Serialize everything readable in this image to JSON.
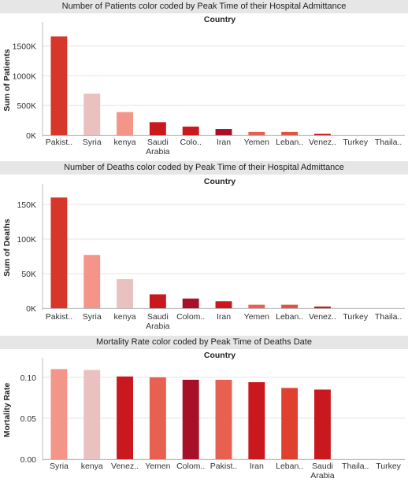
{
  "charts": [
    {
      "title": "Number of Patients color coded by Peak Time of their Hospital Admittance",
      "header": "Country",
      "chart_data": {
        "type": "bar",
        "title": "Number of Patients color coded by Peak Time of their Hospital Admittance",
        "xlabel": "Country",
        "ylabel": "Sum of Patients",
        "categories": [
          "Pakist..",
          "Syria",
          "kenya",
          "Saudi Arabia",
          "Colo..",
          "Iran",
          "Yemen",
          "Leban..",
          "Venez..",
          "Turkey",
          "Thaila.."
        ],
        "values": [
          1660000,
          700000,
          390000,
          220000,
          145000,
          105000,
          55000,
          55000,
          25000,
          0,
          0
        ],
        "colors": [
          "#d7372b",
          "#e9c2c0",
          "#f4958a",
          "#c9191e",
          "#c9191e",
          "#a8102a",
          "#e8604f",
          "#e25442",
          "#c9191e",
          "#c9191e",
          "#c9191e"
        ],
        "ylim": [
          0,
          1850000
        ],
        "yticks": [
          0,
          500000,
          1000000,
          1500000
        ],
        "ytick_labels": [
          "0K",
          "500K",
          "1000K",
          "1500K"
        ]
      }
    },
    {
      "title": "Number of Deaths color coded by Peak Time of their Hospital Admittance",
      "header": "Country",
      "chart_data": {
        "type": "bar",
        "title": "Number of Deaths color coded by Peak Time of their Hospital Admittance",
        "xlabel": "Country",
        "ylabel": "Sum of Deaths",
        "categories": [
          "Pakist..",
          "Syria",
          "kenya",
          "Saudi Arabia",
          "Colom..",
          "Iran",
          "Yemen",
          "Leban..",
          "Venez..",
          "Turkey",
          "Thaila.."
        ],
        "values": [
          160000,
          77000,
          42000,
          20000,
          14000,
          10000,
          5000,
          5000,
          2500,
          0,
          0
        ],
        "colors": [
          "#d7372b",
          "#f4958a",
          "#e9c2c0",
          "#c9191e",
          "#a8102a",
          "#c9191e",
          "#e8604f",
          "#e25442",
          "#c9191e",
          "#c9191e",
          "#c9191e"
        ],
        "ylim": [
          0,
          175000
        ],
        "yticks": [
          0,
          50000,
          100000,
          150000
        ],
        "ytick_labels": [
          "0K",
          "50K",
          "100K",
          "150K"
        ]
      }
    },
    {
      "title": "Mortality Rate color coded by Peak Time of Deaths Date",
      "header": "Country",
      "chart_data": {
        "type": "bar",
        "title": "Mortality Rate color coded by Peak Time of Deaths Date",
        "xlabel": "Country",
        "ylabel": "Mortality Rate",
        "categories": [
          "Syria",
          "kenya",
          "Venez..",
          "Yemen",
          "Colom..",
          "Pakist..",
          "Iran",
          "Leban..",
          "Saudi Arabia",
          "Thaila..",
          "Turkey"
        ],
        "values": [
          0.11,
          0.109,
          0.101,
          0.1,
          0.097,
          0.097,
          0.094,
          0.087,
          0.085,
          0,
          0
        ],
        "colors": [
          "#f4958a",
          "#e9c2c0",
          "#c9191e",
          "#e8604f",
          "#a8102a",
          "#e8604f",
          "#c9191e",
          "#e0402e",
          "#c9191e",
          "#c9191e",
          "#c9191e"
        ],
        "ylim": [
          0,
          0.12
        ],
        "yticks": [
          0,
          0.05,
          0.1
        ],
        "ytick_labels": [
          "0.00",
          "0.05",
          "0.10"
        ]
      }
    }
  ]
}
